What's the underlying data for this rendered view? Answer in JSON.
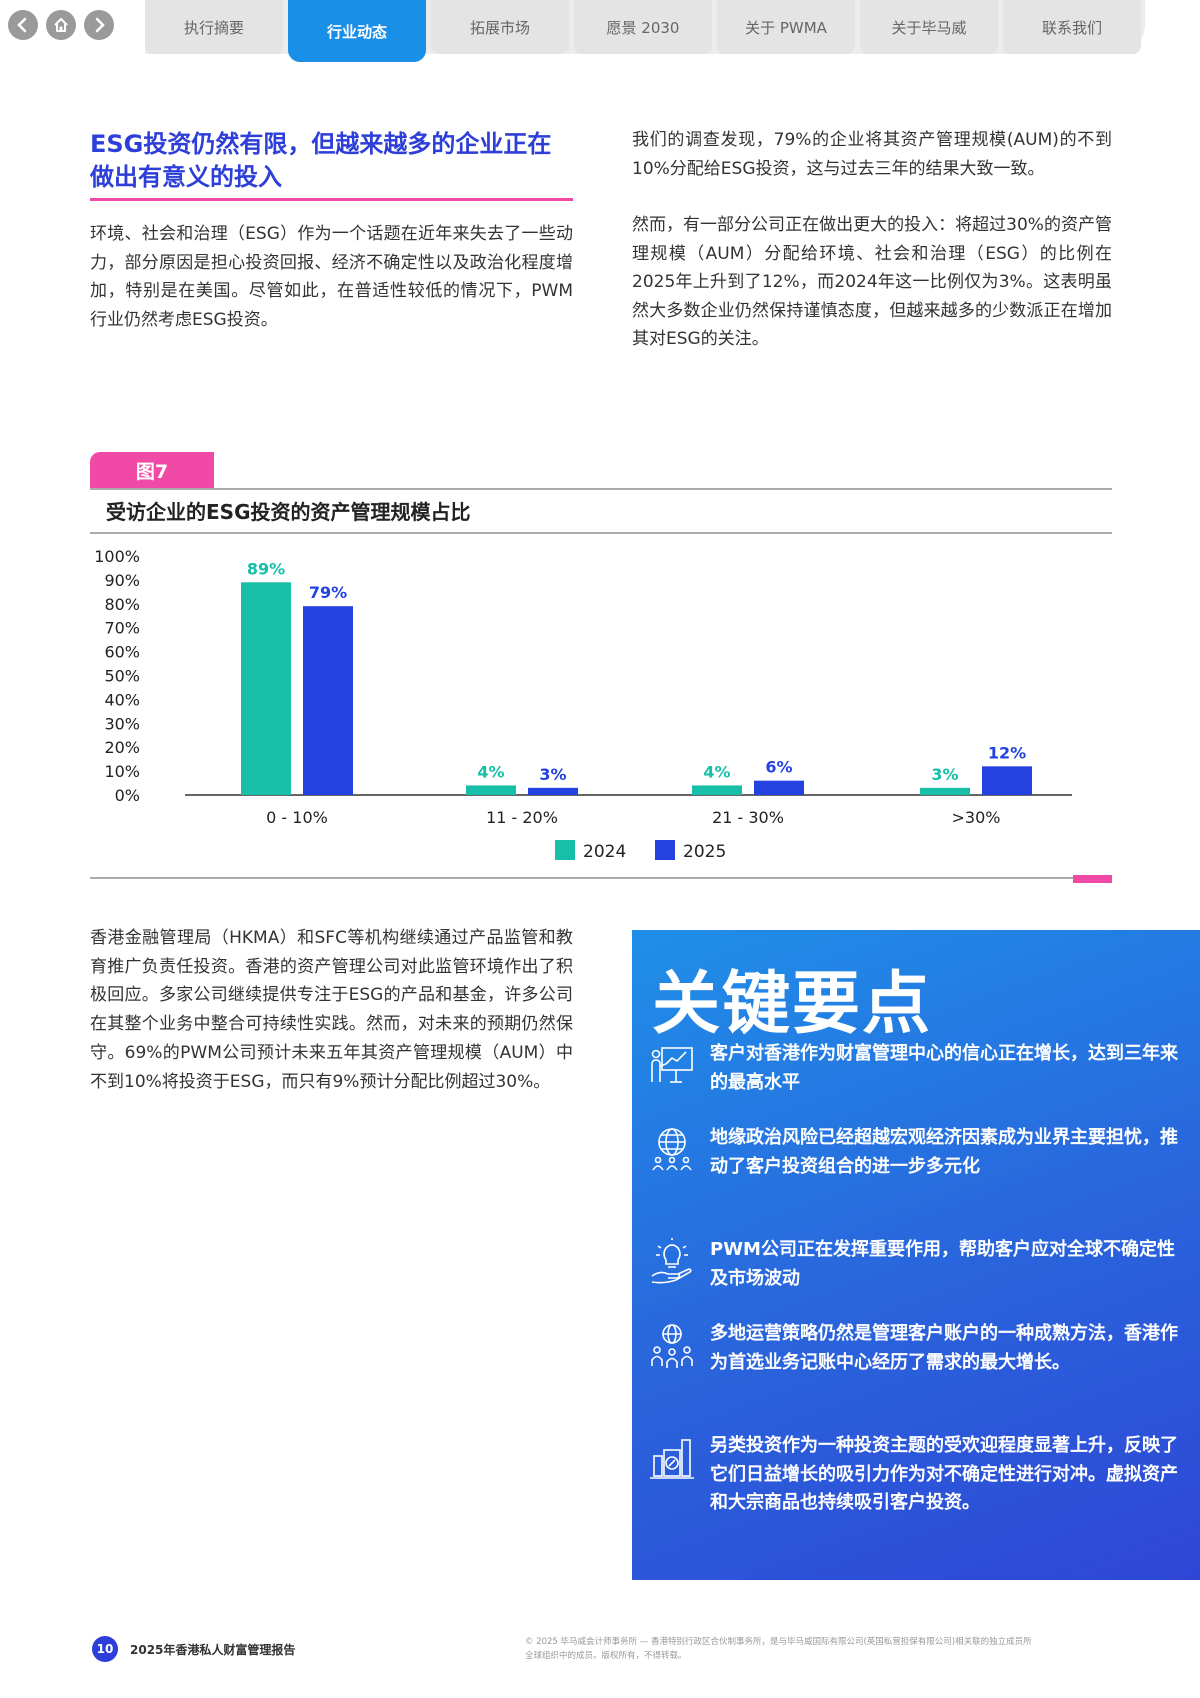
{
  "nav": {
    "tabs": [
      {
        "label": "执行摘要",
        "active": false
      },
      {
        "label": "行业动态",
        "active": true
      },
      {
        "label": "拓展市场",
        "active": false
      },
      {
        "label": "愿景 2030",
        "active": false
      },
      {
        "label": "关于 PWMA",
        "active": false
      },
      {
        "label": "关于毕马威",
        "active": false
      },
      {
        "label": "联系我们",
        "active": false
      }
    ],
    "icons": [
      "chevron-left-icon",
      "home-icon",
      "chevron-right-icon"
    ]
  },
  "section": {
    "title": "ESG投资仍然有限，但越来越多的企业正在做出有意义的投入",
    "para1": "环境、社会和治理（ESG）作为一个话题在近年来失去了一些动力，部分原因是担心投资回报、经济不确定性以及政治化程度增加，特别是在美国。尽管如此，在普适性较低的情况下，PWM行业仍然考虑ESG投资。",
    "right_para1": "我们的调查发现，79%的企业将其资产管理规模(AUM)的不到10%分配给ESG投资，这与过去三年的结果大致一致。",
    "right_para2": "然而，有一部分公司正在做出更大的投入：将超过30%的资产管理规模（AUM）分配给环境、社会和治理（ESG）的比例在2025年上升到了12%，而2024年这一比例仅为3%。这表明虽然大多数企业仍然保持谨慎态度，但越来越多的少数派正在增加其对ESG的关注。",
    "para2": "香港金融管理局（HKMA）和SFC等机构继续通过产品监管和教育推广负责任投资。香港的资产管理公司对此监管环境作出了积极回应。多家公司继续提供专注于ESG的产品和基金，许多公司在其整个业务中整合可持续性实践。然而，对未来的预期仍然保守。69%的PWM公司预计未来五年其资产管理规模（AUM）中不到10%将投资于ESG，而只有9%预计分配比例超过30%。"
  },
  "figure": {
    "tag": "图7",
    "title": "受访企业的ESG投资的资产管理规模占比"
  },
  "chart_data": {
    "type": "bar",
    "title": "受访企业的ESG投资的资产管理规模占比",
    "categories": [
      "0 - 10%",
      "11 - 20%",
      "21 - 30%",
      ">30%"
    ],
    "series": [
      {
        "name": "2024",
        "values": [
          89,
          4,
          4,
          3
        ],
        "color": "#17bfa8",
        "labels": [
          "89%",
          "4%",
          "4%",
          "3%"
        ]
      },
      {
        "name": "2025",
        "values": [
          79,
          3,
          6,
          12
        ],
        "color": "#2342e0",
        "labels": [
          "79%",
          "3%",
          "6%",
          "12%"
        ]
      }
    ],
    "yticks": [
      "0%",
      "10%",
      "20%",
      "30%",
      "40%",
      "50%",
      "60%",
      "70%",
      "80%",
      "90%",
      "100%"
    ],
    "ylim": [
      0,
      100
    ],
    "grid": false,
    "legend": "bottom-center"
  },
  "keypoints": {
    "title": "关键要点",
    "items": [
      {
        "icon": "presentation-chart-icon",
        "text": "客户对香港作为财富管理中心的信心正在增长，达到三年来的最高水平"
      },
      {
        "icon": "globe-people-icon",
        "text": "地缘政治风险已经超越宏观经济因素成为业界主要担忧，推动了客户投资组合的进一步多元化"
      },
      {
        "icon": "hand-lightbulb-icon",
        "text": "PWM公司正在发挥重要作用，帮助客户应对全球不确定性及市场波动"
      },
      {
        "icon": "globe-team-icon",
        "text": "多地运营策略仍然是管理客户账户的一种成熟方法，香港作为首选业务记账中心经历了需求的最大增长。"
      },
      {
        "icon": "percent-buildings-icon",
        "text": "另类投资作为一种投资主题的受欢迎程度显著上升，反映了它们日益增长的吸引力作为对不确定性进行对冲。虚拟资产和大宗商品也持续吸引客户投资。"
      }
    ]
  },
  "footer": {
    "page_number": "10",
    "report_title": "2025年香港私人财富管理报告",
    "legal_line1": "© 2025 毕马威会计师事务所 — 香港特别行政区合伙制事务所，是与毕马威国际有限公司(英国私营担保有限公司)相关联的独立成员所",
    "legal_line2": "全球组织中的成员。版权所有，不得转载。"
  }
}
